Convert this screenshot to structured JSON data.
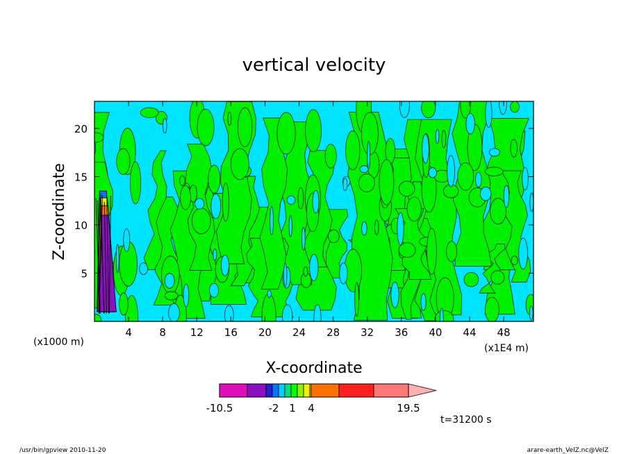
{
  "chart_data": {
    "type": "heatmap",
    "title": "vertical velocity",
    "xlabel": "X-coordinate",
    "ylabel": "Z-coordinate",
    "x_unit": "(x1E4 m)",
    "y_unit": "(x1000 m)",
    "xlim": [
      0,
      51.5
    ],
    "ylim": [
      0,
      22.8
    ],
    "x_ticks": [
      "4",
      "8",
      "12",
      "16",
      "20",
      "24",
      "28",
      "32",
      "36",
      "40",
      "44",
      "48"
    ],
    "y_ticks": [
      "5",
      "10",
      "15",
      "20"
    ],
    "grid": false,
    "colorbar": {
      "levels": [
        -10.5,
        -8,
        -5,
        -3,
        -2,
        -1,
        0,
        1,
        2,
        3,
        4,
        7,
        10,
        15,
        19.5
      ],
      "colors": [
        "#e010b8",
        "#8a10c0",
        "#2020d0",
        "#1070ff",
        "#00d0ff",
        "#00e080",
        "#00ff00",
        "#90f000",
        "#f0f000",
        "#ffc000",
        "#ff7000",
        "#ff2020",
        "#ff7878",
        "#ffb0b0"
      ],
      "tick_labels": [
        "-10.5",
        "-2",
        "1",
        "4",
        "19.5"
      ]
    },
    "dominant_fill_near_zero": {
      "weak_negative": "#00e5ff",
      "weak_positive": "#00f000"
    },
    "annotations": [
      "t=31200 s"
    ]
  },
  "footer": {
    "left": "/usr/bin/gpview   2010-11-20",
    "right": "arare-earth_VelZ.nc@VelZ"
  }
}
